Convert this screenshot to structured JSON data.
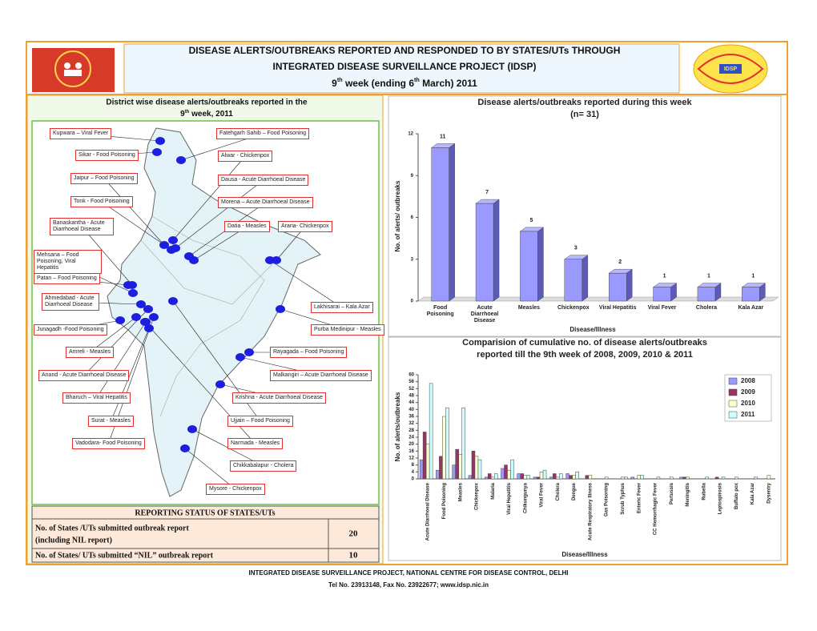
{
  "header": {
    "title_lines": [
      "DISEASE ALERTS/OUTBREAKS REPORTED AND RESPONDED TO BY STATES/UTs THROUGH",
      "INTEGRATED DISEASE SURVEILLANCE PROJECT (IDSP)"
    ],
    "week_line": [
      "9",
      "th",
      " week (ending 6",
      "th",
      " March) 2011"
    ],
    "logo_text": "IDSP"
  },
  "map": {
    "title_line1": "District wise disease alerts/outbreaks reported in the",
    "title_line2": [
      "9",
      "th",
      " week, 2011"
    ],
    "labels": [
      "Kupwara – Viral Fever",
      "Sikar - Food Poisoning",
      "Jaipur – Food Poisoning",
      "Tonk - Food Poisoning",
      "Banaskantha - Acute Diarrhoeal Disease",
      "Mehsana – Food Poisoning, Viral Hepatitis",
      "Patan – Food Poisoning",
      "Ahmedabad - Acute Diarrhoeal Disease",
      "Junagadh -Food Poisoning",
      "Amreli - Measles",
      "Anand - Acute Diarrhoeal Disease",
      "Bharuch – Viral Hepatitis",
      "Surat - Measles",
      "Vadodara- Food Poisoning",
      "Fatehgarh Sahib – Food Poisoning",
      "Alwar - Chickenpox",
      "Dausa - Acute Diarrhoeal Disease",
      "Morena – Acute Diarrhoeal Disease",
      "Datia - Measles",
      "Araria- Chickenpox",
      "Lakhisarai – Kala Azar",
      "Purba Medinipur - Measles",
      "Rayagada – Food Poisoning",
      "Malkangiri – Acute Diarrhoeal Disease",
      "Krishna - Acute Diarrhoeal Disease",
      "Ujjain – Food Poisoning",
      "Narmada - Measles",
      "Chikkabalapur - Cholera",
      "Mysore - Chickenpox"
    ]
  },
  "status_table": {
    "title": "REPORTING STATUS OF STATES/UTs",
    "rows": [
      {
        "label": [
          "No. of States /UTs submitted outbreak report",
          "(including NIL report)"
        ],
        "value": 20
      },
      {
        "label": [
          "No. of States/ UTs submitted “NIL” outbreak report"
        ],
        "value": 10
      }
    ]
  },
  "chart_data": [
    {
      "type": "bar3d",
      "title": "Disease alerts/outbreaks reported during this week",
      "subtitle": "(n= 31)",
      "categories": [
        "Food Poisoning",
        "Acute Diarrhoeal Disease",
        "Measles",
        "Chickenpox",
        "Viral Hepatitis",
        "Viral Fever",
        "Cholera",
        "Kala Azar"
      ],
      "values": [
        11,
        7,
        5,
        3,
        2,
        1,
        1,
        1
      ],
      "color": "#9999ff",
      "ylim": [
        0,
        12
      ],
      "yticks": [
        0,
        3,
        6,
        9,
        12
      ],
      "y_label": "No. of alerts/ outbreaks",
      "x_label": "Disease/Illness"
    },
    {
      "type": "grouped_bar",
      "title": "Comparision of cumulative no. of disease alerts/outbreaks",
      "subtitle": "reported till the 9th week of 2008, 2009, 2010 & 2011",
      "categories": [
        "Acute Diarrhoeal Disease",
        "Food Poisoning",
        "Measles",
        "Chickenpox",
        "Malaria",
        "Viral Hepatitis",
        "Chikungunya",
        "Viral Fever",
        "Cholera",
        "Dengue",
        "Acute Respiratory Illness",
        "Gas Poisoning",
        "Scrub Typhus",
        "Enteric Fever",
        "CC Hemorrhagic Fever",
        "Pertussis",
        "Meningitis",
        "Rubella",
        "Leptospirosis",
        "Buffalo pox",
        "Kala Azar",
        "Dysentry"
      ],
      "series": [
        {
          "name": "2008",
          "color": "#9999ff",
          "values": [
            11,
            5,
            8,
            2,
            1,
            6,
            3,
            1,
            1,
            3,
            0,
            0,
            0,
            1,
            0,
            0,
            1,
            0,
            0,
            0,
            0,
            0
          ]
        },
        {
          "name": "2009",
          "color": "#993366",
          "values": [
            27,
            13,
            17,
            16,
            3,
            8,
            3,
            1,
            3,
            2,
            2,
            0,
            0,
            0,
            0,
            0,
            1,
            0,
            1,
            0,
            0,
            0
          ]
        },
        {
          "name": "2010",
          "color": "#ffffcc",
          "values": [
            20,
            36,
            14,
            13,
            1,
            5,
            2,
            4,
            1,
            2,
            2,
            1,
            1,
            2,
            0,
            1,
            1,
            0,
            0,
            1,
            0,
            2
          ]
        },
        {
          "name": "2011",
          "color": "#ccffff",
          "values": [
            55,
            41,
            41,
            11,
            3,
            11,
            2,
            5,
            3,
            4,
            0,
            0,
            1,
            2,
            1,
            0,
            0,
            1,
            1,
            0,
            1,
            0
          ]
        }
      ],
      "ylim": [
        0,
        60
      ],
      "yticks": [
        0,
        4,
        8,
        12,
        16,
        20,
        24,
        28,
        32,
        36,
        40,
        44,
        48,
        52,
        56,
        60
      ],
      "legend": "top-right",
      "y_label": "No. of alerts/outbreaks",
      "x_label": "Disease/Illness"
    }
  ],
  "footer": [
    "INTEGRATED DISEASE SURVEILLANCE PROJECT, NATIONAL CENTRE FOR DISEASE CONTROL, DELHI",
    "Tel No. 23913148, Fax No. 23922677; www.idsp.nic.in"
  ]
}
